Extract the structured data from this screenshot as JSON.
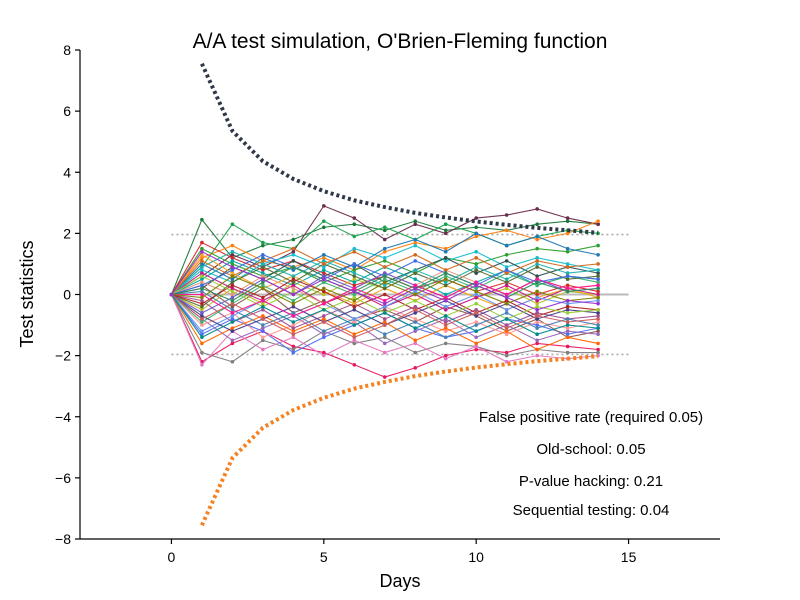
{
  "chart_data": {
    "type": "line",
    "title": "A/A test simulation, O'Brien-Fleming function",
    "xlabel": "Days",
    "ylabel": "Test statistics",
    "xlim": [
      -3,
      18
    ],
    "ylim": [
      -8,
      8
    ],
    "x_ticks": [
      0,
      5,
      10,
      15
    ],
    "y_ticks": [
      -8,
      -6,
      -4,
      -2,
      0,
      2,
      4,
      6,
      8
    ],
    "x_tick_labels": [
      "0",
      "5",
      "10",
      "15"
    ],
    "y_tick_labels": [
      "−8",
      "−6",
      "−4",
      "−2",
      "0",
      "2",
      "4",
      "6",
      "8"
    ],
    "grid": false,
    "reference_lines": {
      "zero": {
        "y": 0,
        "x_range": [
          0,
          15
        ],
        "color": "#bbbbbb"
      },
      "fixed_upper": {
        "y": 1.96,
        "x_range": [
          0,
          15
        ],
        "color": "#aaaaaa",
        "style": "dotted"
      },
      "fixed_lower": {
        "y": -1.96,
        "x_range": [
          0,
          15
        ],
        "color": "#aaaaaa",
        "style": "dotted"
      }
    },
    "obf_bounds": {
      "days": [
        1,
        2,
        3,
        4,
        5,
        6,
        7,
        8,
        9,
        10,
        11,
        12,
        13,
        14
      ],
      "upper": [
        7.55,
        5.35,
        4.36,
        3.78,
        3.38,
        3.08,
        2.86,
        2.67,
        2.52,
        2.39,
        2.28,
        2.18,
        2.1,
        2.02
      ],
      "lower": [
        -7.55,
        -5.35,
        -4.36,
        -3.78,
        -3.38,
        -3.08,
        -2.86,
        -2.67,
        -2.52,
        -2.39,
        -2.28,
        -2.18,
        -2.1,
        -2.02
      ],
      "upper_color": "#2f3849",
      "lower_color": "#f58220"
    },
    "simulation": {
      "n_runs": 100,
      "days": [
        0,
        1,
        2,
        3,
        4,
        5,
        6,
        7,
        8,
        9,
        10,
        11,
        12,
        13,
        14
      ],
      "start_value": 0,
      "sample_paths": [
        {
          "color": "#1b7a3a",
          "values": [
            0,
            2.45,
            1.2,
            1.6,
            1.8,
            2.2,
            2.3,
            2.1,
            2.4,
            2.1,
            2.2,
            2.1,
            2.3,
            2.4,
            2.3
          ]
        },
        {
          "color": "#6b2b4a",
          "values": [
            0,
            0.6,
            1.3,
            0.9,
            1.4,
            2.9,
            2.5,
            1.8,
            2.3,
            2.0,
            2.5,
            2.6,
            2.8,
            2.5,
            2.3
          ]
        },
        {
          "color": "#1aa34a",
          "values": [
            0,
            0.9,
            2.3,
            1.7,
            1.5,
            2.4,
            1.9,
            2.2,
            1.8,
            2.3,
            2.0,
            1.6,
            1.9,
            2.1,
            2.0
          ]
        },
        {
          "color": "#e8175d",
          "values": [
            0,
            -2.2,
            -1.6,
            -1.2,
            -1.7,
            -1.9,
            -2.3,
            -2.7,
            -2.4,
            -2.0,
            -1.8,
            -1.9,
            -1.6,
            -1.7,
            -1.8
          ]
        },
        {
          "color": "#7f7f7f",
          "values": [
            0,
            -1.9,
            -2.2,
            -1.5,
            -1.8,
            -1.2,
            -1.6,
            -1.4,
            -1.9,
            -1.6,
            -1.7,
            -2.0,
            -1.8,
            -1.9,
            -1.9
          ]
        },
        {
          "color": "#ff7f0e",
          "values": [
            0,
            1.2,
            1.6,
            1.1,
            0.9,
            1.2,
            0.8,
            1.4,
            1.7,
            1.5,
            1.9,
            2.1,
            1.8,
            2.0,
            2.4
          ]
        },
        {
          "color": "#e377c2",
          "values": [
            0,
            -2.3,
            -1.2,
            -1.8,
            -1.4,
            -2.0,
            -1.5,
            -1.9,
            -1.6,
            -2.1,
            -1.7,
            -2.2,
            -2.0,
            -2.1,
            -2.0
          ]
        },
        {
          "color": "#2ca02c",
          "values": [
            0,
            1.5,
            1.0,
            0.6,
            0.9,
            0.4,
            0.8,
            1.1,
            0.7,
            1.2,
            1.0,
            1.3,
            1.5,
            1.4,
            1.6
          ]
        },
        {
          "color": "#4c6ef5",
          "values": [
            0,
            -1.3,
            -0.8,
            -1.2,
            -1.9,
            -1.4,
            -1.0,
            -0.6,
            -1.1,
            -1.4,
            -1.2,
            -0.8,
            -1.0,
            -1.3,
            -1.1
          ]
        },
        {
          "color": "#8c564b",
          "values": [
            0,
            0.3,
            -0.4,
            0.2,
            -0.6,
            -0.2,
            -0.8,
            -0.5,
            -0.9,
            -0.4,
            -0.7,
            -1.2,
            -0.8,
            -1.4,
            -1.2
          ]
        },
        {
          "color": "#d62728",
          "values": [
            0,
            1.7,
            1.2,
            0.8,
            1.1,
            0.7,
            0.3,
            0.6,
            0.2,
            0.5,
            0.1,
            0.4,
            0.0,
            0.3,
            0.1
          ]
        },
        {
          "color": "#9467bd",
          "values": [
            0,
            -0.8,
            -1.5,
            -1.1,
            -0.7,
            -1.3,
            -0.9,
            -1.6,
            -1.2,
            -0.8,
            -1.4,
            -1.0,
            -1.5,
            -1.2,
            -1.3
          ]
        },
        {
          "color": "#17becf",
          "values": [
            0,
            0.8,
            0.4,
            1.0,
            1.3,
            0.9,
            1.5,
            1.2,
            1.6,
            1.1,
            1.4,
            0.9,
            1.2,
            1.0,
            0.8
          ]
        },
        {
          "color": "#bcbd22",
          "values": [
            0,
            -0.5,
            0.2,
            -0.3,
            0.4,
            0.0,
            0.5,
            0.2,
            -0.2,
            0.3,
            -0.1,
            0.2,
            -0.3,
            0.1,
            0.0
          ]
        },
        {
          "color": "#1f77b4",
          "values": [
            0,
            1.0,
            0.5,
            1.2,
            0.8,
            1.3,
            0.9,
            1.5,
            1.8,
            1.4,
            2.0,
            1.6,
            1.9,
            1.5,
            1.3
          ]
        },
        {
          "color": "#ff9896",
          "values": [
            0,
            -1.0,
            -0.6,
            -1.4,
            -1.0,
            -0.5,
            -0.9,
            -0.4,
            -0.8,
            -1.2,
            -0.9,
            -1.3,
            -0.9,
            -1.1,
            -0.9
          ]
        },
        {
          "color": "#2f4f4f",
          "values": [
            0,
            0.2,
            0.9,
            0.5,
            1.1,
            0.6,
            1.0,
            0.4,
            0.8,
            1.2,
            0.7,
            1.1,
            0.6,
            0.9,
            0.7
          ]
        },
        {
          "color": "#ff6600",
          "values": [
            0,
            -1.6,
            -1.1,
            -0.7,
            -1.2,
            -0.8,
            -1.3,
            -0.9,
            -1.5,
            -1.1,
            -1.6,
            -1.2,
            -1.8,
            -1.4,
            -1.6
          ]
        },
        {
          "color": "#00a6a6",
          "values": [
            0,
            0.5,
            1.1,
            0.7,
            0.3,
            0.8,
            0.4,
            0.9,
            0.5,
            0.0,
            0.4,
            0.8,
            0.3,
            0.6,
            0.5
          ]
        },
        {
          "color": "#a05195",
          "values": [
            0,
            -0.2,
            -0.9,
            -0.5,
            -1.1,
            -0.7,
            -0.3,
            -0.8,
            -0.4,
            -0.9,
            -0.5,
            -1.0,
            -0.6,
            -0.8,
            -0.7
          ]
        },
        {
          "color": "#f5a623",
          "values": [
            0,
            1.3,
            0.7,
            0.2,
            0.6,
            0.1,
            -0.3,
            0.2,
            -0.2,
            0.3,
            -0.1,
            -0.5,
            -0.1,
            0.2,
            -0.1
          ]
        },
        {
          "color": "#3cb371",
          "values": [
            0,
            -0.9,
            -0.3,
            0.3,
            -0.2,
            0.4,
            0.0,
            0.5,
            0.1,
            0.6,
            0.2,
            0.7,
            0.3,
            0.6,
            0.4
          ]
        },
        {
          "color": "#4682b4",
          "values": [
            0,
            0.1,
            -0.5,
            -1.0,
            -0.6,
            -1.2,
            -0.8,
            -1.3,
            -0.9,
            -1.4,
            -1.0,
            -0.6,
            -1.1,
            -0.8,
            -1.0
          ]
        },
        {
          "color": "#c71585",
          "values": [
            0,
            0.7,
            0.2,
            -0.2,
            0.3,
            -0.3,
            0.1,
            -0.4,
            0.0,
            -0.5,
            -0.1,
            0.3,
            -0.2,
            0.2,
            0.0
          ]
        },
        {
          "color": "#556b2f",
          "values": [
            0,
            -0.4,
            0.4,
            0.9,
            0.4,
            1.0,
            0.6,
            0.2,
            0.7,
            0.3,
            0.8,
            0.4,
            0.9,
            0.5,
            0.6
          ]
        },
        {
          "color": "#6495ed",
          "values": [
            0,
            -1.2,
            -0.7,
            -0.2,
            -0.7,
            -0.3,
            -0.8,
            -0.4,
            0.1,
            -0.4,
            0.0,
            -0.5,
            -0.1,
            -0.3,
            -0.2
          ]
        },
        {
          "color": "#e9967a",
          "values": [
            0,
            0.4,
            0.0,
            0.6,
            0.2,
            -0.3,
            0.2,
            0.7,
            0.3,
            0.8,
            0.4,
            0.0,
            0.5,
            0.2,
            0.3
          ]
        },
        {
          "color": "#483d8b",
          "values": [
            0,
            -0.7,
            -1.2,
            -0.8,
            -0.4,
            -0.9,
            -0.5,
            -1.0,
            -0.6,
            -0.2,
            -0.7,
            -0.3,
            -0.8,
            -0.5,
            -0.6
          ]
        },
        {
          "color": "#20b2aa",
          "values": [
            0,
            0.9,
            1.4,
            1.0,
            0.6,
            1.1,
            0.7,
            0.3,
            0.8,
            0.4,
            0.9,
            0.5,
            1.0,
            0.7,
            0.8
          ]
        },
        {
          "color": "#b22222",
          "values": [
            0,
            -0.3,
            0.3,
            -0.1,
            0.5,
            0.1,
            -0.4,
            0.0,
            -0.5,
            -0.1,
            -0.6,
            -0.2,
            -0.7,
            -0.4,
            -0.5
          ]
        },
        {
          "color": "#9acd32",
          "values": [
            0,
            0.6,
            0.1,
            -0.4,
            0.1,
            -0.5,
            -0.1,
            -0.6,
            -0.2,
            -0.7,
            -0.3,
            -0.8,
            -0.4,
            -0.6,
            -0.5
          ]
        },
        {
          "color": "#6a5acd",
          "values": [
            0,
            -0.6,
            -0.1,
            0.5,
            0.0,
            0.6,
            0.2,
            0.7,
            0.3,
            -0.1,
            0.4,
            0.0,
            0.5,
            0.1,
            0.2
          ]
        },
        {
          "color": "#d2691e",
          "values": [
            0,
            1.1,
            0.6,
            1.1,
            1.5,
            1.0,
            1.4,
            0.9,
            1.3,
            0.8,
            1.2,
            0.7,
            1.1,
            0.9,
            1.0
          ]
        },
        {
          "color": "#008b8b",
          "values": [
            0,
            -1.4,
            -0.9,
            -0.4,
            -0.9,
            -0.5,
            -1.0,
            -0.6,
            -1.1,
            -0.7,
            -1.2,
            -0.8,
            -1.3,
            -1.0,
            -1.1
          ]
        },
        {
          "color": "#ff1493",
          "values": [
            0,
            0.0,
            -0.6,
            -0.2,
            -0.7,
            -0.3,
            0.2,
            -0.2,
            0.3,
            -0.1,
            0.4,
            0.0,
            0.5,
            0.2,
            0.3
          ]
        },
        {
          "color": "#808000",
          "values": [
            0,
            -0.1,
            0.6,
            0.2,
            -0.3,
            0.2,
            -0.2,
            0.4,
            0.0,
            0.5,
            0.1,
            -0.3,
            0.1,
            -0.2,
            -0.1
          ]
        },
        {
          "color": "#4169e1",
          "values": [
            0,
            0.3,
            0.8,
            1.3,
            0.9,
            0.5,
            1.0,
            0.6,
            1.1,
            0.7,
            0.3,
            0.8,
            0.4,
            0.6,
            0.5
          ]
        },
        {
          "color": "#cd5c5c",
          "values": [
            0,
            -0.8,
            -0.3,
            -0.8,
            -1.3,
            -0.9,
            -1.4,
            -1.0,
            -0.5,
            -1.0,
            -0.6,
            -1.1,
            -0.7,
            -0.9,
            -0.8
          ]
        },
        {
          "color": "#2e8b57",
          "values": [
            0,
            0.2,
            -0.2,
            0.4,
            0.9,
            0.5,
            0.1,
            0.6,
            0.2,
            0.7,
            0.3,
            -0.1,
            0.4,
            0.1,
            0.2
          ]
        },
        {
          "color": "#9932cc",
          "values": [
            0,
            1.4,
            0.9,
            0.5,
            0.0,
            0.5,
            0.1,
            -0.3,
            0.2,
            -0.2,
            0.3,
            -0.1,
            -0.5,
            -0.2,
            -0.3
          ]
        }
      ]
    },
    "annotations": [
      "False positive rate (required 0.05)",
      "Old-school: 0.05",
      "P-value hacking: 0.21",
      "Sequential testing: 0.04"
    ]
  }
}
